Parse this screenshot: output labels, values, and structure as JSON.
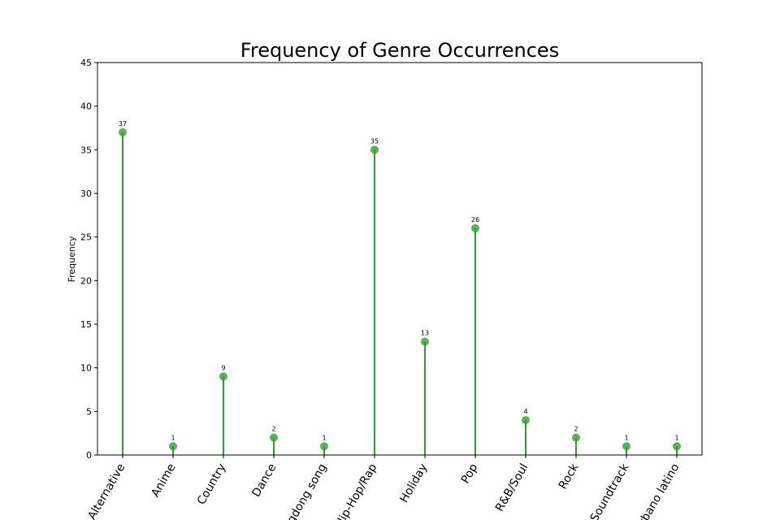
{
  "chart_data": {
    "type": "lollipop",
    "title": "Frequency of Genre Occurrences",
    "xlabel": "",
    "ylabel": "Frequency",
    "categories": [
      "Alternative",
      "Anime",
      "Country",
      "Dance",
      "Dangdong song",
      "Hip-Hop/Rap",
      "Holiday",
      "Pop",
      "R&B/Soul",
      "Rock",
      "Soundtrack",
      "Urbano latino"
    ],
    "values": [
      37,
      1,
      9,
      2,
      1,
      35,
      13,
      26,
      4,
      2,
      1,
      1
    ],
    "ylim": [
      0,
      45
    ],
    "yticks": [
      0,
      5,
      10,
      15,
      20,
      25,
      30,
      35,
      40,
      45
    ],
    "grid": false,
    "legend": "none",
    "colors": {
      "stem": "#2ca02c",
      "marker": "#2ca02c"
    }
  }
}
